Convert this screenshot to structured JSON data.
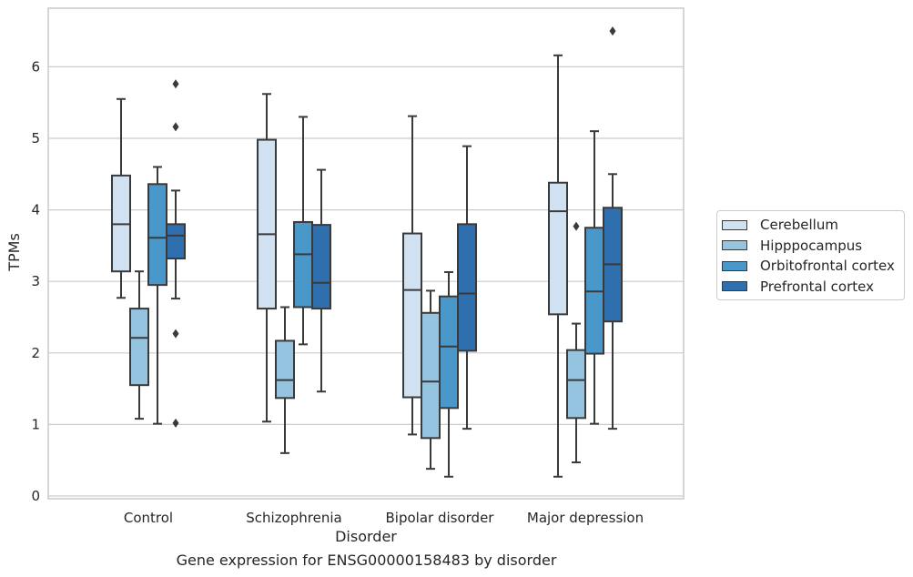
{
  "chart_data": {
    "type": "boxplot",
    "xlabel": "Disorder",
    "ylabel": "TPMs",
    "caption": "Gene expression for ENSG00000158483 by disorder",
    "ylim": [
      0,
      6.8
    ],
    "yticks": [
      "0",
      "1",
      "2",
      "3",
      "4",
      "5",
      "6"
    ],
    "categories": [
      "Control",
      "Schizophrenia",
      "Bipolar disorder",
      "Major depression"
    ],
    "grid": "horizontal",
    "legend_position": "right",
    "series": [
      {
        "name": "Cerebellum",
        "color": "#d0e1f2",
        "boxes": [
          {
            "whislo": 2.77,
            "q1": 3.14,
            "med": 3.8,
            "q3": 4.48,
            "whishi": 5.55,
            "fliers": []
          },
          {
            "whislo": 1.04,
            "q1": 2.62,
            "med": 3.66,
            "q3": 4.98,
            "whishi": 5.62,
            "fliers": []
          },
          {
            "whislo": 0.86,
            "q1": 1.38,
            "med": 2.88,
            "q3": 3.67,
            "whishi": 5.31,
            "fliers": []
          },
          {
            "whislo": 0.27,
            "q1": 2.54,
            "med": 3.98,
            "q3": 4.38,
            "whishi": 6.16,
            "fliers": []
          }
        ]
      },
      {
        "name": "Hipppocampus",
        "color": "#94c4df",
        "boxes": [
          {
            "whislo": 1.08,
            "q1": 1.55,
            "med": 2.21,
            "q3": 2.62,
            "whishi": 3.14,
            "fliers": []
          },
          {
            "whislo": 0.6,
            "q1": 1.37,
            "med": 1.62,
            "q3": 2.17,
            "whishi": 2.64,
            "fliers": []
          },
          {
            "whislo": 0.38,
            "q1": 0.81,
            "med": 1.6,
            "q3": 2.56,
            "whishi": 2.87,
            "fliers": []
          },
          {
            "whislo": 0.47,
            "q1": 1.09,
            "med": 1.62,
            "q3": 2.04,
            "whishi": 2.41,
            "fliers": [
              3.77
            ]
          }
        ]
      },
      {
        "name": "Orbitofrontal cortex",
        "color": "#4a98c9",
        "boxes": [
          {
            "whislo": 1.01,
            "q1": 2.95,
            "med": 3.61,
            "q3": 4.36,
            "whishi": 4.6,
            "fliers": []
          },
          {
            "whislo": 2.12,
            "q1": 2.64,
            "med": 3.38,
            "q3": 3.83,
            "whishi": 5.3,
            "fliers": []
          },
          {
            "whislo": 0.27,
            "q1": 1.23,
            "med": 2.09,
            "q3": 2.79,
            "whishi": 3.13,
            "fliers": []
          },
          {
            "whislo": 1.01,
            "q1": 1.99,
            "med": 2.86,
            "q3": 3.75,
            "whishi": 5.1,
            "fliers": []
          }
        ]
      },
      {
        "name": "Prefrontal cortex",
        "color": "#2f6fad",
        "boxes": [
          {
            "whislo": 2.76,
            "q1": 3.32,
            "med": 3.64,
            "q3": 3.8,
            "whishi": 4.27,
            "fliers": [
              5.76,
              5.16,
              2.27,
              1.02
            ]
          },
          {
            "whislo": 1.46,
            "q1": 2.62,
            "med": 2.98,
            "q3": 3.79,
            "whishi": 4.56,
            "fliers": []
          },
          {
            "whislo": 0.94,
            "q1": 2.03,
            "med": 2.83,
            "q3": 3.8,
            "whishi": 4.89,
            "fliers": []
          },
          {
            "whislo": 0.94,
            "q1": 2.44,
            "med": 3.24,
            "q3": 4.03,
            "whishi": 4.5,
            "fliers": [
              6.5
            ]
          }
        ]
      }
    ]
  }
}
